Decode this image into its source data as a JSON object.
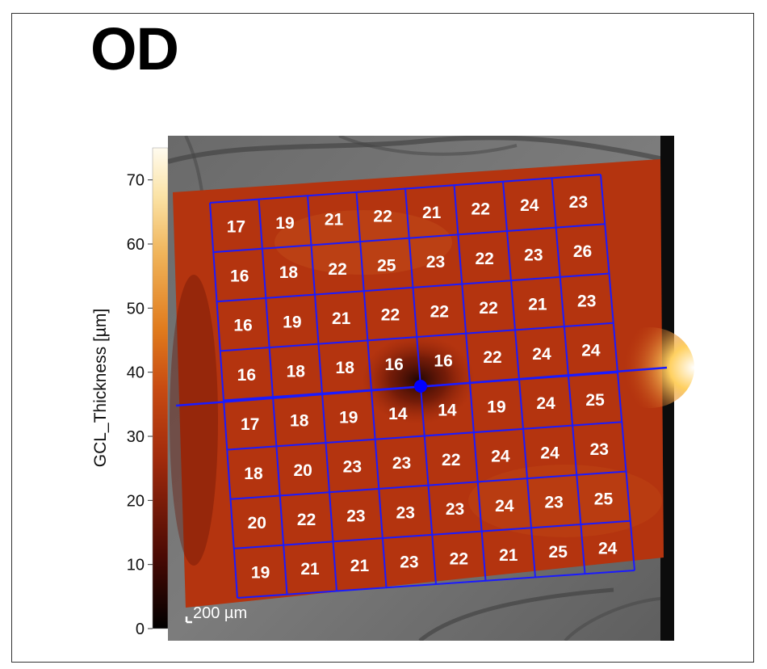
{
  "header": {
    "eye": "OD"
  },
  "colorbar": {
    "label": "GCL_Thickness [µm]",
    "ticks": [
      0,
      10,
      20,
      30,
      40,
      50,
      60,
      70
    ],
    "range": [
      0,
      75
    ]
  },
  "scale_bar": {
    "label": "200 µm"
  },
  "chart_data": {
    "type": "heatmap",
    "title": "OD",
    "colorbar_label": "GCL_Thickness [µm]",
    "colorbar_range": [
      0,
      75
    ],
    "colormap": "hot (black-red-orange-yellow-white)",
    "grid_rows": 8,
    "grid_cols": 8,
    "values": [
      [
        17,
        19,
        21,
        22,
        21,
        22,
        24,
        23
      ],
      [
        16,
        18,
        22,
        25,
        23,
        22,
        23,
        26
      ],
      [
        16,
        19,
        21,
        22,
        22,
        22,
        21,
        23
      ],
      [
        16,
        18,
        18,
        16,
        16,
        22,
        24,
        24
      ],
      [
        17,
        18,
        19,
        14,
        14,
        19,
        24,
        25
      ],
      [
        18,
        20,
        23,
        23,
        22,
        24,
        24,
        23
      ],
      [
        20,
        22,
        23,
        23,
        23,
        24,
        23,
        25
      ],
      [
        19,
        21,
        21,
        23,
        22,
        21,
        25,
        24
      ]
    ],
    "scale_bar": "200 µm"
  },
  "colors": {
    "grid_line": "#1a1aff",
    "fovea_marker": "#0000ff",
    "tissue": "#b0300f",
    "cell_text": "#ffffff"
  }
}
